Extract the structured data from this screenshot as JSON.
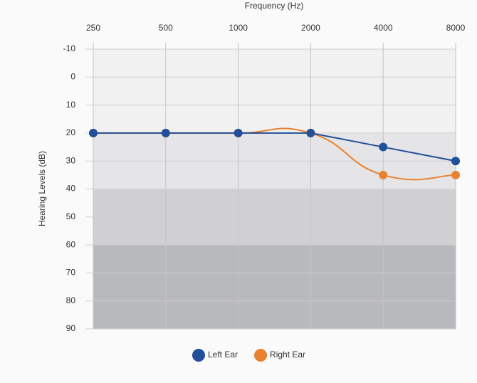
{
  "chart_data": {
    "type": "line",
    "title": "Frequency (Hz)",
    "y_label": "Hearing Levels (dB)",
    "x": [
      250,
      500,
      1000,
      2000,
      4000,
      8000
    ],
    "xlim": [
      250,
      8000
    ],
    "xticks": [
      250,
      500,
      1000,
      2000,
      4000,
      8000
    ],
    "x_log_scale": true,
    "ylim": [
      -10,
      90
    ],
    "yticks": [
      -10,
      0,
      10,
      20,
      30,
      40,
      50,
      60,
      70,
      80,
      90
    ],
    "y_inverted": true,
    "grid": true,
    "bands": [
      {
        "from": -10,
        "to": 20,
        "color": "#f1f1f2"
      },
      {
        "from": 20,
        "to": 40,
        "color": "#e5e5e7"
      },
      {
        "from": 40,
        "to": 60,
        "color": "#d0d0d3"
      },
      {
        "from": 60,
        "to": 90,
        "color": "#b8b9bc"
      }
    ],
    "series": [
      {
        "name": "Left Ear",
        "color": "#224f99",
        "smooth": false,
        "values": [
          20,
          20,
          20,
          20,
          25,
          30
        ]
      },
      {
        "name": "Right Ear",
        "color": "#e8822f",
        "smooth": true,
        "values": [
          20,
          20,
          20,
          20,
          35,
          35
        ]
      }
    ],
    "legend": "bottom"
  }
}
